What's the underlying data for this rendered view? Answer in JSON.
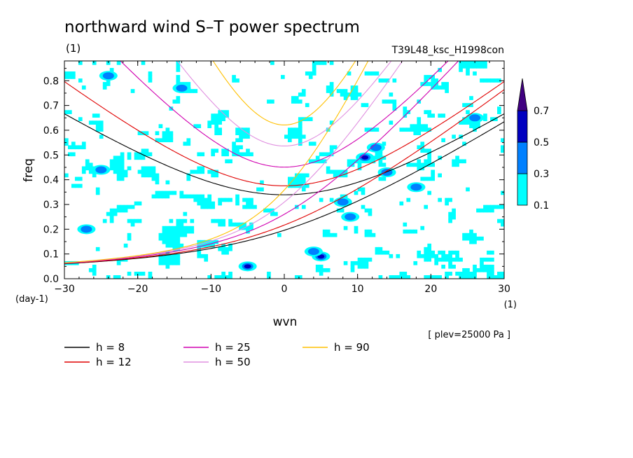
{
  "chart_data": {
    "type": "heatmap",
    "title": "northward wind S–T power spectrum",
    "subtitle_left": "(1)",
    "subtitle_right": "T39L48_ksc_H1998con",
    "xlabel": "wvn",
    "ylabel": "freq",
    "x_unit": "(1)",
    "y_unit": "(day-1)",
    "annotation": "[ plev=25000 Pa ]",
    "xlim": [
      -30,
      30
    ],
    "ylim": [
      0,
      0.88
    ],
    "xticks": [
      -30,
      -20,
      -10,
      0,
      10,
      20,
      30
    ],
    "yticks": [
      0.0,
      0.1,
      0.2,
      0.3,
      0.4,
      0.5,
      0.6,
      0.7,
      0.8
    ],
    "ytick_labels": [
      "0.0",
      "0.1",
      "0.2",
      "0.3",
      "0.4",
      "0.5",
      "0.6",
      "0.7",
      "0.8"
    ],
    "colorbar": {
      "levels": [
        "0.1",
        "0.3",
        "0.5",
        "0.7"
      ],
      "colors": [
        "#00ffff",
        "#0080ff",
        "#0000c0",
        "#400080"
      ]
    },
    "hotspots": [
      {
        "x": -5,
        "y": 0.05,
        "level": 3
      },
      {
        "x": 5,
        "y": 0.09,
        "level": 3
      },
      {
        "x": 11,
        "y": 0.49,
        "level": 3
      },
      {
        "x": 12.5,
        "y": 0.53,
        "level": 2
      },
      {
        "x": 8,
        "y": 0.31,
        "level": 2
      },
      {
        "x": -24,
        "y": 0.82,
        "level": 2
      },
      {
        "x": 26,
        "y": 0.65,
        "level": 2
      },
      {
        "x": -25,
        "y": 0.44,
        "level": 2
      },
      {
        "x": -14,
        "y": 0.77,
        "level": 2
      },
      {
        "x": 9,
        "y": 0.25,
        "level": 2
      },
      {
        "x": 18,
        "y": 0.37,
        "level": 2
      },
      {
        "x": 4,
        "y": 0.11,
        "level": 2
      },
      {
        "x": 14,
        "y": 0.43,
        "level": 2
      },
      {
        "x": -27,
        "y": 0.2,
        "level": 2
      }
    ],
    "series": [
      {
        "name": "h =  8",
        "h": 8,
        "color": "#000000"
      },
      {
        "name": "h = 12",
        "h": 12,
        "color": "#e00000"
      },
      {
        "name": "h = 25",
        "h": 25,
        "color": "#d000b0"
      },
      {
        "name": "h = 50",
        "h": 50,
        "color": "#e090e0"
      },
      {
        "name": "h = 90",
        "h": 90,
        "color": "#ffc000"
      }
    ]
  }
}
